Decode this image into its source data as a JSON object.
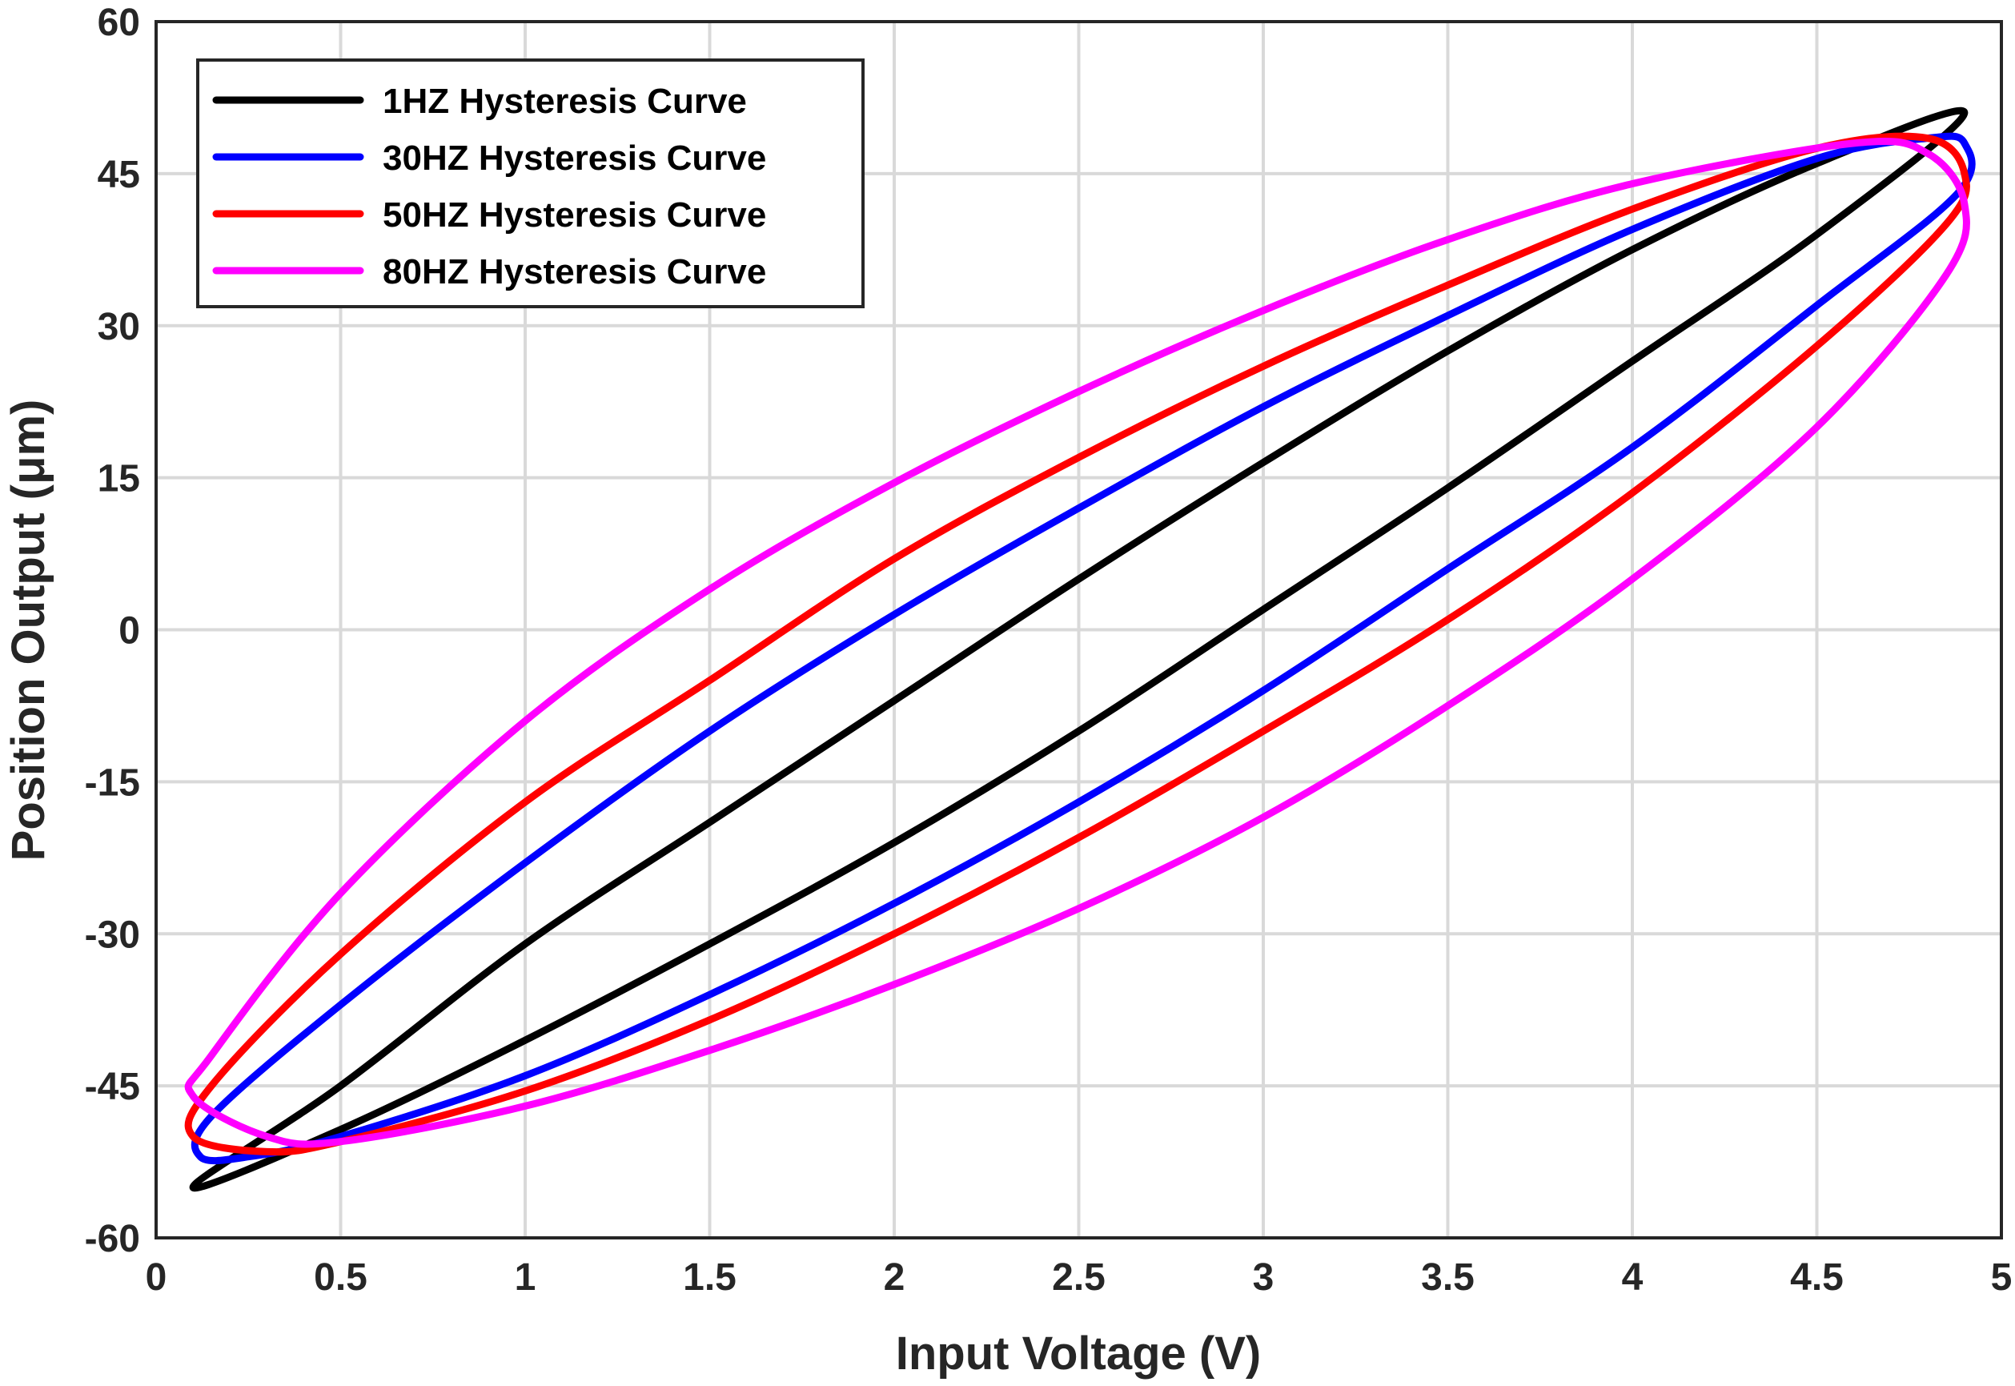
{
  "chart_data": {
    "type": "line",
    "title": "",
    "xlabel": "Input Voltage (V)",
    "ylabel": "Position Output (μm)",
    "xlim": [
      0,
      5
    ],
    "ylim": [
      -60,
      60
    ],
    "xticks": [
      0,
      0.5,
      1,
      1.5,
      2,
      2.5,
      3,
      3.5,
      4,
      4.5,
      5
    ],
    "yticks": [
      -60,
      -45,
      -30,
      -15,
      0,
      15,
      30,
      45,
      60
    ],
    "xtick_labels": [
      "0",
      "0.5",
      "1",
      "1.5",
      "2",
      "2.5",
      "3",
      "3.5",
      "4",
      "4.5",
      "5"
    ],
    "ytick_labels": [
      "-60",
      "-45",
      "-30",
      "-15",
      "0",
      "15",
      "30",
      "45",
      "60"
    ],
    "grid": true,
    "legend_position": "top-left",
    "series": [
      {
        "name": "1HZ Hysteresis Curve",
        "color": "#000000",
        "x": [
          0.1,
          0.5,
          1.0,
          1.5,
          2.0,
          2.5,
          3.0,
          3.5,
          4.0,
          4.5,
          4.9,
          4.5,
          4.0,
          3.5,
          3.0,
          2.5,
          2.0,
          1.5,
          1.0,
          0.5,
          0.1
        ],
        "y": [
          -55,
          -49.3,
          -40.5,
          -31,
          -21,
          -10,
          2,
          14,
          26.5,
          39,
          51,
          46,
          37.5,
          27.5,
          16.5,
          5,
          -7,
          -19,
          -31,
          -45,
          -55
        ]
      },
      {
        "name": "30HZ Hysteresis Curve",
        "color": "#0000ff",
        "x": [
          0.12,
          0.25,
          0.5,
          1.0,
          1.5,
          2.0,
          2.5,
          3.0,
          3.5,
          4.0,
          4.5,
          4.88,
          4.9,
          4.8,
          4.5,
          4.0,
          3.5,
          3.0,
          2.5,
          2.0,
          1.5,
          1.0,
          0.5,
          0.15,
          0.12
        ],
        "y": [
          -52,
          -52,
          -50,
          -44,
          -36,
          -27,
          -17,
          -6,
          6,
          18,
          32,
          43,
          48,
          48.5,
          46.5,
          39.5,
          31,
          22,
          12,
          1.5,
          -10,
          -23,
          -37,
          -48,
          -52
        ]
      },
      {
        "name": "50HZ Hysteresis Curve",
        "color": "#ff0000",
        "x": [
          0.1,
          0.3,
          0.5,
          1.0,
          1.5,
          2.0,
          2.5,
          3.0,
          3.5,
          4.0,
          4.5,
          4.85,
          4.9,
          4.8,
          4.5,
          4.0,
          3.5,
          3.0,
          2.5,
          2.0,
          1.5,
          1.0,
          0.5,
          0.15,
          0.1
        ],
        "y": [
          -50,
          -51.5,
          -50.5,
          -45.5,
          -38.5,
          -30,
          -20.5,
          -10,
          1,
          13.5,
          28,
          40,
          45,
          48.5,
          47.5,
          41.5,
          34,
          26,
          17,
          7,
          -5,
          -17,
          -32,
          -45,
          -50
        ]
      },
      {
        "name": "80HZ Hysteresis Curve",
        "color": "#ff00ff",
        "x": [
          0.1,
          0.3,
          0.5,
          1.0,
          1.5,
          2.0,
          2.5,
          3.0,
          3.5,
          4.0,
          4.5,
          4.85,
          4.9,
          4.8,
          4.6,
          4.0,
          3.5,
          3.0,
          2.5,
          2.0,
          1.5,
          1.0,
          0.5,
          0.15,
          0.1
        ],
        "y": [
          -46,
          -50,
          -50.5,
          -47,
          -41.5,
          -35,
          -27.5,
          -18.5,
          -7.5,
          5,
          20,
          35,
          42,
          47,
          48,
          44,
          38.5,
          31.5,
          23.5,
          14.5,
          4,
          -9,
          -26,
          -42,
          -46
        ]
      }
    ]
  }
}
